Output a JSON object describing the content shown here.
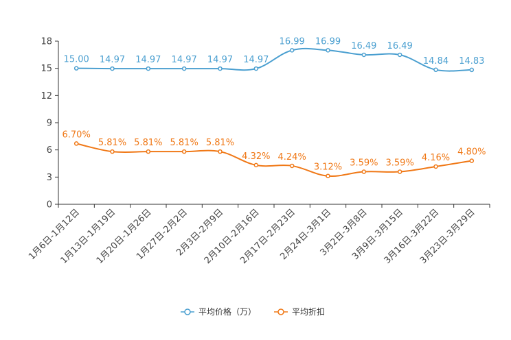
{
  "chart_data": {
    "type": "line",
    "title": "",
    "xlabel": "",
    "ylabel": "",
    "ylim": [
      0,
      18
    ],
    "yticks": [
      0,
      3,
      6,
      9,
      12,
      15,
      18
    ],
    "grid": false,
    "legend_position": "bottom-center",
    "categories": [
      "1月6日-1月12日",
      "1月13日-1月19日",
      "1月20日-1月26日",
      "1月27日-2月2日",
      "2月3日-2月9日",
      "2月10日-2月16日",
      "2月17日-2月23日",
      "2月24日-3月1日",
      "3月2日-3月8日",
      "3月9日-3月15日",
      "3月16日-3月22日",
      "3月23日-3月29日"
    ],
    "series": [
      {
        "name": "平均价格（万）",
        "color": "#4a9fd0",
        "values": [
          15.0,
          14.97,
          14.97,
          14.97,
          14.97,
          14.97,
          16.99,
          16.99,
          16.49,
          16.49,
          14.84,
          14.83
        ],
        "labels": [
          "15.00",
          "14.97",
          "14.97",
          "14.97",
          "14.97",
          "14.97",
          "16.99",
          "16.99",
          "16.49",
          "16.49",
          "14.84",
          "14.83"
        ]
      },
      {
        "name": "平均折扣",
        "color": "#f07816",
        "values": [
          6.7,
          5.81,
          5.81,
          5.81,
          5.81,
          4.32,
          4.24,
          3.12,
          3.59,
          3.59,
          4.16,
          4.8
        ],
        "labels": [
          "6.70%",
          "5.81%",
          "5.81%",
          "5.81%",
          "5.81%",
          "4.32%",
          "4.24%",
          "3.12%",
          "3.59%",
          "3.59%",
          "4.16%",
          "4.80%"
        ]
      }
    ]
  }
}
